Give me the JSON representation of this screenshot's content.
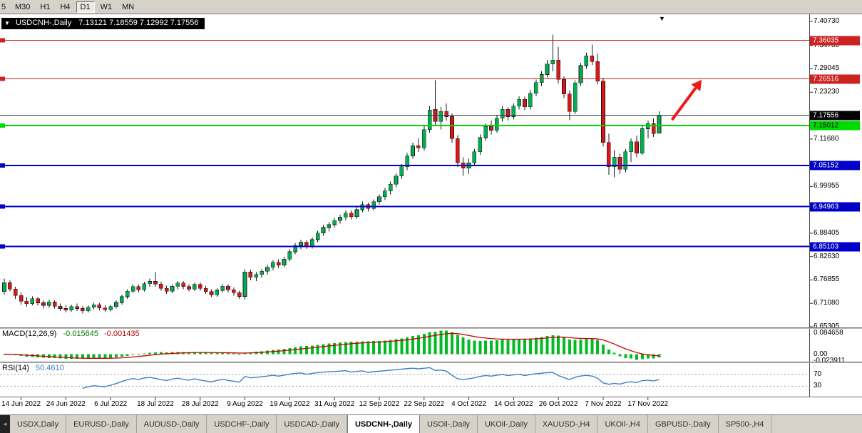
{
  "toolbar": {
    "timeframes": [
      {
        "label": "5",
        "active": false
      },
      {
        "label": "M30",
        "active": false
      },
      {
        "label": "H1",
        "active": false
      },
      {
        "label": "H4",
        "active": false
      },
      {
        "label": "D1",
        "active": true
      },
      {
        "label": "W1",
        "active": false
      },
      {
        "label": "MN",
        "active": false
      }
    ]
  },
  "chart": {
    "symbol_label": "USDCNH-,Daily",
    "ohlc_text": "7.13121 7.18559 7.12992 7.17556",
    "title_marker": "▼",
    "top_marker": "▼"
  },
  "price_scale": {
    "plain_labels": [
      {
        "text": "7.40730",
        "value": 7.4073
      },
      {
        "text": "7.34780",
        "value": 7.3478
      },
      {
        "text": "7.29045",
        "value": 7.29045
      },
      {
        "text": "7.23230",
        "value": 7.2323
      },
      {
        "text": "7.11680",
        "value": 7.1168
      },
      {
        "text": "6.99955",
        "value": 6.99955
      },
      {
        "text": "6.88405",
        "value": 6.88405
      },
      {
        "text": "6.82630",
        "value": 6.8263
      },
      {
        "text": "6.76855",
        "value": 6.76855
      },
      {
        "text": "6.71080",
        "value": 6.7108
      },
      {
        "text": "6.65305",
        "value": 6.65305
      }
    ],
    "markers": [
      {
        "text": "7.36035",
        "value": 7.36035,
        "bg": "#CC2222",
        "fg": "#FFFFFF",
        "name": "resistance-price-tag-1"
      },
      {
        "text": "7.26516",
        "value": 7.26516,
        "bg": "#CC2222",
        "fg": "#FFFFFF",
        "name": "resistance-price-tag-2"
      },
      {
        "text": "7.17556",
        "value": 7.17556,
        "bg": "#000000",
        "fg": "#FFFFFF",
        "name": "current-price-tag"
      },
      {
        "text": "7.15012",
        "value": 7.15012,
        "bg": "#00DC00",
        "fg": "#000000",
        "name": "support-price-tag-green"
      },
      {
        "text": "7.05152",
        "value": 7.05152,
        "bg": "#0000C8",
        "fg": "#FFFFFF",
        "name": "support-price-tag-blue-1"
      },
      {
        "text": "6.94963",
        "value": 6.94963,
        "bg": "#0000C8",
        "fg": "#FFFFFF",
        "name": "support-price-tag-blue-2"
      },
      {
        "text": "6.85103",
        "value": 6.85103,
        "bg": "#0000C8",
        "fg": "#FFFFFF",
        "name": "support-price-tag-blue-3"
      }
    ]
  },
  "lines": [
    {
      "price": 7.36035,
      "color": "#CC2222",
      "width": 1,
      "edge_marker": true,
      "name": "resistance-line-1"
    },
    {
      "price": 7.26516,
      "color": "#CC2222",
      "width": 1,
      "edge_marker": true,
      "name": "resistance-line-2"
    },
    {
      "price": 7.17556,
      "color": "#333333",
      "width": 1,
      "edge_marker": false,
      "name": "current-price-line"
    },
    {
      "price": 7.15012,
      "color": "#00DC00",
      "width": 2,
      "edge_marker": true,
      "name": "support-line-green"
    },
    {
      "price": 7.05152,
      "color": "#0000C8",
      "width": 2,
      "edge_marker": true,
      "name": "support-line-blue-1"
    },
    {
      "price": 6.94963,
      "color": "#0000C8",
      "width": 2,
      "edge_marker": true,
      "name": "support-line-blue-2"
    },
    {
      "price": 6.85103,
      "color": "#0000C8",
      "width": 2,
      "edge_marker": true,
      "name": "support-line-blue-3"
    }
  ],
  "chart_data": {
    "type": "candlestick",
    "symbol": "USDCNH-",
    "timeframe": "Daily",
    "current_ohlc": {
      "open": 7.13121,
      "high": 7.18559,
      "low": 7.12992,
      "close": 7.17556
    },
    "ylim": [
      6.65305,
      7.4073
    ],
    "up_color": "#00B050",
    "down_color": "#DD1515",
    "wick_color": "#1a1a1a",
    "ohlc": [
      [
        6.74,
        6.772,
        6.732,
        6.762
      ],
      [
        6.762,
        6.768,
        6.74,
        6.746
      ],
      [
        6.746,
        6.752,
        6.722,
        6.73
      ],
      [
        6.73,
        6.738,
        6.708,
        6.716
      ],
      [
        6.716,
        6.726,
        6.702,
        6.71
      ],
      [
        6.71,
        6.728,
        6.706,
        6.722
      ],
      [
        6.722,
        6.726,
        6.706,
        6.712
      ],
      [
        6.712,
        6.718,
        6.698,
        6.706
      ],
      [
        6.706,
        6.72,
        6.7,
        6.714
      ],
      [
        6.714,
        6.718,
        6.698,
        6.704
      ],
      [
        6.704,
        6.71,
        6.692,
        6.698
      ],
      [
        6.698,
        6.706,
        6.688,
        6.694
      ],
      [
        6.694,
        6.708,
        6.69,
        6.703
      ],
      [
        6.703,
        6.71,
        6.692,
        6.698
      ],
      [
        6.698,
        6.704,
        6.686,
        6.692
      ],
      [
        6.692,
        6.706,
        6.688,
        6.701
      ],
      [
        6.701,
        6.712,
        6.695,
        6.707
      ],
      [
        6.707,
        6.712,
        6.694,
        6.699
      ],
      [
        6.699,
        6.706,
        6.69,
        6.695
      ],
      [
        6.695,
        6.708,
        6.691,
        6.703
      ],
      [
        6.703,
        6.718,
        6.698,
        6.713
      ],
      [
        6.713,
        6.732,
        6.708,
        6.727
      ],
      [
        6.727,
        6.746,
        6.722,
        6.741
      ],
      [
        6.741,
        6.758,
        6.736,
        6.752
      ],
      [
        6.752,
        6.757,
        6.738,
        6.744
      ],
      [
        6.744,
        6.764,
        6.74,
        6.759
      ],
      [
        6.759,
        6.772,
        6.752,
        6.765
      ],
      [
        6.765,
        6.788,
        6.752,
        6.758
      ],
      [
        6.758,
        6.764,
        6.742,
        6.748
      ],
      [
        6.748,
        6.754,
        6.734,
        6.741
      ],
      [
        6.741,
        6.758,
        6.736,
        6.753
      ],
      [
        6.753,
        6.766,
        6.746,
        6.761
      ],
      [
        6.761,
        6.766,
        6.746,
        6.752
      ],
      [
        6.752,
        6.758,
        6.74,
        6.746
      ],
      [
        6.746,
        6.762,
        6.741,
        6.757
      ],
      [
        6.757,
        6.762,
        6.742,
        6.748
      ],
      [
        6.748,
        6.754,
        6.734,
        6.74
      ],
      [
        6.74,
        6.746,
        6.726,
        6.732
      ],
      [
        6.732,
        6.748,
        6.727,
        6.743
      ],
      [
        6.743,
        6.758,
        6.738,
        6.753
      ],
      [
        6.753,
        6.758,
        6.738,
        6.744
      ],
      [
        6.744,
        6.75,
        6.73,
        6.737
      ],
      [
        6.737,
        6.742,
        6.722,
        6.728
      ],
      [
        6.728,
        6.795,
        6.72,
        6.788
      ],
      [
        6.788,
        6.794,
        6.768,
        6.775
      ],
      [
        6.775,
        6.788,
        6.766,
        6.782
      ],
      [
        6.782,
        6.796,
        6.774,
        6.79
      ],
      [
        6.79,
        6.806,
        6.782,
        6.8
      ],
      [
        6.8,
        6.818,
        6.792,
        6.812
      ],
      [
        6.812,
        6.82,
        6.798,
        6.805
      ],
      [
        6.805,
        6.826,
        6.8,
        6.82
      ],
      [
        6.82,
        6.845,
        6.814,
        6.838
      ],
      [
        6.838,
        6.86,
        6.832,
        6.853
      ],
      [
        6.853,
        6.868,
        6.844,
        6.861
      ],
      [
        6.861,
        6.866,
        6.845,
        6.851
      ],
      [
        6.851,
        6.874,
        6.846,
        6.868
      ],
      [
        6.868,
        6.89,
        6.862,
        6.884
      ],
      [
        6.884,
        6.905,
        6.878,
        6.898
      ],
      [
        6.898,
        6.912,
        6.888,
        6.905
      ],
      [
        6.905,
        6.922,
        6.898,
        6.915
      ],
      [
        6.915,
        6.93,
        6.908,
        6.924
      ],
      [
        6.924,
        6.94,
        6.916,
        6.934
      ],
      [
        6.934,
        6.94,
        6.918,
        6.925
      ],
      [
        6.925,
        6.948,
        6.92,
        6.942
      ],
      [
        6.942,
        6.962,
        6.936,
        6.955
      ],
      [
        6.955,
        6.96,
        6.938,
        6.945
      ],
      [
        6.945,
        6.968,
        6.94,
        6.962
      ],
      [
        6.962,
        6.98,
        6.955,
        6.974
      ],
      [
        6.974,
        6.996,
        6.966,
        6.988
      ],
      [
        6.988,
        7.012,
        6.98,
        7.005
      ],
      [
        7.005,
        7.032,
        6.998,
        7.025
      ],
      [
        7.025,
        7.055,
        7.018,
        7.048
      ],
      [
        7.048,
        7.082,
        7.04,
        7.075
      ],
      [
        7.075,
        7.108,
        7.068,
        7.1
      ],
      [
        7.1,
        7.118,
        7.085,
        7.095
      ],
      [
        7.095,
        7.148,
        7.088,
        7.14
      ],
      [
        7.14,
        7.198,
        7.132,
        7.188
      ],
      [
        7.19,
        7.262,
        7.148,
        7.16
      ],
      [
        7.16,
        7.196,
        7.14,
        7.185
      ],
      [
        7.185,
        7.205,
        7.162,
        7.172
      ],
      [
        7.172,
        7.18,
        7.108,
        7.118
      ],
      [
        7.118,
        7.126,
        7.048,
        7.058
      ],
      [
        7.058,
        7.072,
        7.026,
        7.045
      ],
      [
        7.045,
        7.068,
        7.03,
        7.058
      ],
      [
        7.058,
        7.092,
        7.05,
        7.085
      ],
      [
        7.085,
        7.128,
        7.078,
        7.12
      ],
      [
        7.12,
        7.155,
        7.112,
        7.148
      ],
      [
        7.148,
        7.162,
        7.128,
        7.138
      ],
      [
        7.138,
        7.176,
        7.132,
        7.168
      ],
      [
        7.168,
        7.198,
        7.16,
        7.19
      ],
      [
        7.19,
        7.196,
        7.162,
        7.172
      ],
      [
        7.172,
        7.205,
        7.165,
        7.198
      ],
      [
        7.198,
        7.222,
        7.19,
        7.215
      ],
      [
        7.215,
        7.221,
        7.188,
        7.196
      ],
      [
        7.196,
        7.238,
        7.19,
        7.23
      ],
      [
        7.23,
        7.264,
        7.222,
        7.256
      ],
      [
        7.256,
        7.284,
        7.248,
        7.276
      ],
      [
        7.276,
        7.312,
        7.268,
        7.302
      ],
      [
        7.302,
        7.375,
        7.284,
        7.312
      ],
      [
        7.312,
        7.344,
        7.254,
        7.264
      ],
      [
        7.264,
        7.272,
        7.218,
        7.228
      ],
      [
        7.228,
        7.236,
        7.163,
        7.185
      ],
      [
        7.185,
        7.262,
        7.178,
        7.255
      ],
      [
        7.255,
        7.305,
        7.248,
        7.298
      ],
      [
        7.298,
        7.33,
        7.29,
        7.322
      ],
      [
        7.322,
        7.35,
        7.3,
        7.308
      ],
      [
        7.308,
        7.328,
        7.252,
        7.26
      ],
      [
        7.26,
        7.268,
        7.098,
        7.108
      ],
      [
        7.108,
        7.13,
        7.028,
        7.048
      ],
      [
        7.048,
        7.088,
        7.022,
        7.072
      ],
      [
        7.072,
        7.08,
        7.03,
        7.042
      ],
      [
        7.042,
        7.092,
        7.035,
        7.085
      ],
      [
        7.085,
        7.118,
        7.06,
        7.11
      ],
      [
        7.11,
        7.125,
        7.072,
        7.082
      ],
      [
        7.082,
        7.15,
        7.078,
        7.142
      ],
      [
        7.142,
        7.162,
        7.118,
        7.155
      ],
      [
        7.155,
        7.168,
        7.122,
        7.13
      ],
      [
        7.13121,
        7.18559,
        7.12992,
        7.17556
      ]
    ],
    "x_ticks": [
      {
        "i": 3,
        "label": "14 Jun 2022"
      },
      {
        "i": 11,
        "label": "24 Jun 2022"
      },
      {
        "i": 19,
        "label": "6 Jul 2022"
      },
      {
        "i": 27,
        "label": "18 Jul 2022"
      },
      {
        "i": 35,
        "label": "28 Jul 2022"
      },
      {
        "i": 43,
        "label": "9 Aug 2022"
      },
      {
        "i": 51,
        "label": "19 Aug 2022"
      },
      {
        "i": 59,
        "label": "31 Aug 2022"
      },
      {
        "i": 67,
        "label": "12 Sep 2022"
      },
      {
        "i": 75,
        "label": "22 Sep 2022"
      },
      {
        "i": 83,
        "label": "4 Oct 2022"
      },
      {
        "i": 91,
        "label": "14 Oct 2022"
      },
      {
        "i": 99,
        "label": "26 Oct 2022"
      },
      {
        "i": 107,
        "label": "7 Nov 2022"
      },
      {
        "i": 115,
        "label": "17 Nov 2022"
      }
    ]
  },
  "indicators": {
    "macd": {
      "label": "MACD(12,26,9)",
      "value": "-0.015645",
      "signal_value": "-0.001435",
      "histogram_color": "#00BB22",
      "signal_color": "#CC0000",
      "scale_labels": [
        {
          "text": "0.084658",
          "value": 0.084658
        },
        {
          "text": "0.00",
          "value": 0.0
        },
        {
          "text": "-0.023911",
          "value": -0.023911
        }
      ]
    },
    "rsi": {
      "label": "RSI(14)",
      "value": "50.4610",
      "line_color": "#3E7FC1",
      "levels": [
        {
          "text": "70",
          "value": 70
        },
        {
          "text": "30",
          "value": 30
        }
      ]
    }
  },
  "annotations": {
    "trend_arrow": {
      "color": "#F01818",
      "from": {
        "index": 119.3,
        "price": 7.164
      },
      "to": {
        "index": 124.6,
        "price": 7.263
      },
      "description": "red up-right arrow"
    }
  },
  "bottom_tabs": {
    "scroll_left_icon": "◄",
    "tabs": [
      {
        "label": "USDX,Daily",
        "active": false
      },
      {
        "label": "EURUSD-,Daily",
        "active": false
      },
      {
        "label": "AUDUSD-,Daily",
        "active": false
      },
      {
        "label": "USDCHF-,Daily",
        "active": false
      },
      {
        "label": "USDCAD-,Daily",
        "active": false
      },
      {
        "label": "USDCNH-,Daily",
        "active": true
      },
      {
        "label": "USOil-,Daily",
        "active": false
      },
      {
        "label": "UKOil-,Daily",
        "active": false
      },
      {
        "label": "XAUUSD-,H4",
        "active": false
      },
      {
        "label": "UKOil-,H4",
        "active": false
      },
      {
        "label": "GBPUSD-,Daily",
        "active": false
      },
      {
        "label": "SP500-,H4",
        "active": false
      }
    ]
  }
}
